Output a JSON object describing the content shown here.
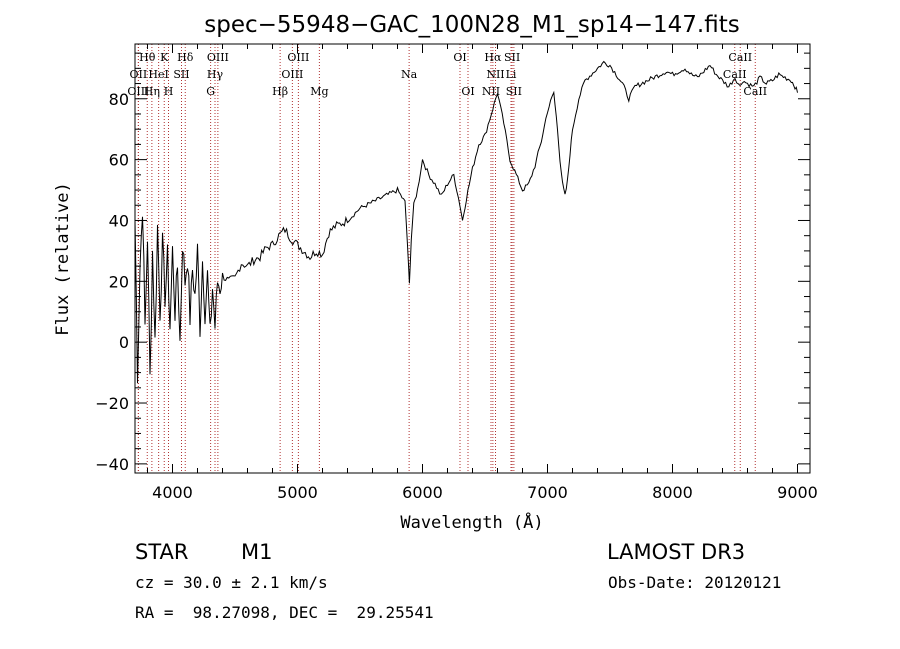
{
  "chart_data": {
    "type": "line",
    "title": "spec−55948−GAC_100N28_M1_sp14−147.fits",
    "xlabel": "Wavelength (Å)",
    "ylabel": "Flux (relative)",
    "xlim": [
      3700,
      9100
    ],
    "ylim": [
      -43,
      98
    ],
    "xticks": [
      4000,
      5000,
      6000,
      7000,
      8000,
      9000
    ],
    "yticks": [
      -40,
      -20,
      0,
      20,
      40,
      60,
      80
    ],
    "grid": false,
    "series": [
      {
        "name": "spectrum",
        "x": [
          3700,
          3720,
          3740,
          3760,
          3780,
          3800,
          3820,
          3840,
          3860,
          3880,
          3900,
          3920,
          3940,
          3960,
          3980,
          4000,
          4020,
          4040,
          4060,
          4080,
          4100,
          4120,
          4140,
          4160,
          4180,
          4200,
          4220,
          4240,
          4260,
          4280,
          4300,
          4320,
          4340,
          4360,
          4380,
          4400,
          4450,
          4500,
          4550,
          4600,
          4650,
          4700,
          4750,
          4800,
          4850,
          4900,
          4950,
          5000,
          5050,
          5100,
          5150,
          5200,
          5250,
          5300,
          5400,
          5500,
          5600,
          5700,
          5800,
          5860,
          5880,
          5895,
          5910,
          5930,
          5960,
          6000,
          6050,
          6100,
          6150,
          6200,
          6250,
          6300,
          6320,
          6350,
          6400,
          6450,
          6500,
          6550,
          6600,
          6650,
          6700,
          6750,
          6800,
          6850,
          6900,
          6950,
          7000,
          7050,
          7080,
          7100,
          7120,
          7140,
          7160,
          7180,
          7200,
          7250,
          7300,
          7350,
          7400,
          7450,
          7500,
          7550,
          7600,
          7650,
          7700,
          7750,
          7800,
          7850,
          7900,
          7950,
          8000,
          8050,
          8100,
          8150,
          8200,
          8250,
          8300,
          8350,
          8400,
          8450,
          8500,
          8540,
          8560,
          8600,
          8650,
          8700,
          8750,
          8800,
          8850,
          8900,
          8950,
          8980,
          9000
        ],
        "y": [
          40,
          -10,
          25,
          45,
          5,
          35,
          -12,
          30,
          0,
          38,
          10,
          32,
          15,
          28,
          5,
          30,
          10,
          25,
          0,
          33,
          20,
          28,
          8,
          24,
          15,
          30,
          5,
          27,
          10,
          22,
          2,
          18,
          5,
          20,
          18,
          22,
          20,
          21,
          26,
          25,
          27,
          28,
          31,
          32,
          35,
          37,
          34,
          32,
          30,
          28,
          30,
          29,
          36,
          38,
          40,
          44,
          46,
          48,
          50,
          46,
          32,
          19,
          34,
          45,
          50,
          60,
          55,
          52,
          48,
          52,
          55,
          45,
          40,
          47,
          57,
          65,
          68,
          75,
          82,
          72,
          60,
          55,
          50,
          52,
          58,
          66,
          76,
          82,
          70,
          60,
          52,
          48,
          53,
          62,
          70,
          80,
          86,
          88,
          90,
          92,
          91,
          88,
          85,
          80,
          84,
          85,
          86,
          87,
          88,
          89,
          88,
          89,
          90,
          88,
          87,
          89,
          91,
          88,
          86,
          84,
          87,
          84,
          86,
          85,
          84,
          87,
          85,
          86,
          88,
          87,
          86,
          84,
          82
        ]
      }
    ],
    "spectral_lines": [
      {
        "label": "Hθ",
        "x": 3798,
        "row": 0
      },
      {
        "label": "K",
        "x": 3934,
        "row": 0
      },
      {
        "label": "Hδ",
        "x": 4102,
        "row": 0
      },
      {
        "label": "OIII",
        "x": 4363,
        "row": 0
      },
      {
        "label": "OIII",
        "x": 5007,
        "row": 0
      },
      {
        "label": "OI",
        "x": 6300,
        "row": 0
      },
      {
        "label": "Hα",
        "x": 6563,
        "row": 0
      },
      {
        "label": "SII",
        "x": 6717,
        "row": 0
      },
      {
        "label": "CaII",
        "x": 8542,
        "row": 0
      },
      {
        "label": "OII",
        "x": 3727,
        "row": 1
      },
      {
        "label": "HeI",
        "x": 3889,
        "row": 1
      },
      {
        "label": "SII",
        "x": 4072,
        "row": 1
      },
      {
        "label": "Hγ",
        "x": 4340,
        "row": 1
      },
      {
        "label": "OIII",
        "x": 4959,
        "row": 1
      },
      {
        "label": "Na",
        "x": 5893,
        "row": 1
      },
      {
        "label": "NII",
        "x": 6584,
        "row": 1
      },
      {
        "label": "Li",
        "x": 6708,
        "row": 1
      },
      {
        "label": "CaII",
        "x": 8498,
        "row": 1
      },
      {
        "label": "OIII",
        "x": 3727,
        "row": 2
      },
      {
        "label": "Hη",
        "x": 3835,
        "row": 2
      },
      {
        "label": "H",
        "x": 3968,
        "row": 2
      },
      {
        "label": "G",
        "x": 4305,
        "row": 2
      },
      {
        "label": "Hβ",
        "x": 4861,
        "row": 2
      },
      {
        "label": "Mg",
        "x": 5175,
        "row": 2
      },
      {
        "label": "OI",
        "x": 6364,
        "row": 2
      },
      {
        "label": "NII",
        "x": 6548,
        "row": 2
      },
      {
        "label": "SII",
        "x": 6731,
        "row": 2
      },
      {
        "label": "CaII",
        "x": 8662,
        "row": 2
      }
    ]
  },
  "info": {
    "object_type": "STAR",
    "subclass": "M1",
    "survey": "LAMOST DR3",
    "redshift": "cz = 30.0 ± 2.1 km/s",
    "obs_date": "Obs-Date: 20120121",
    "coords": "RA =  98.27098, DEC =  29.25541"
  }
}
